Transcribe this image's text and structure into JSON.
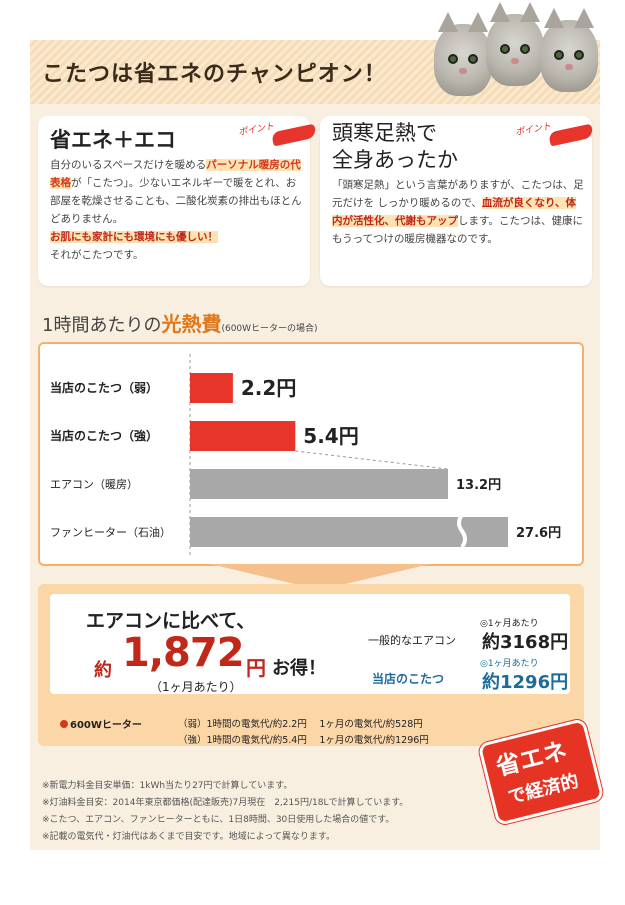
{
  "title": "こたつは省エネのチャンピオン！",
  "point_label": "ポイント",
  "box1": {
    "heading": "省エネ＋エコ",
    "t1": "自分のいるスペースだけを暖める",
    "t1_hl": "パーソナル暖房の代表格",
    "t2": "が「こたつ」。少ないエネルギーで暖をとれ、お部屋を乾燥させることも、二酸化炭素の排出もほとんどありません。",
    "hl_line": "お肌にも家計にも環境にも優しい！",
    "end": "それがこたつです。"
  },
  "box2": {
    "heading1": "頭寒足熱で",
    "heading2": "全身あったか",
    "t1": "「頭寒足熱」という言葉がありますが、こたつは、足元だけを しっかり暖めるので、",
    "hl": "血流が良くなり、体内が活性化、代謝もアップ",
    "t2": "します。こたつは、健康にもうってつけの暖房機器なのです。"
  },
  "cost_title": {
    "pre": "1時間あたりの",
    "big": "光熱費",
    "small": "(600Wヒーターの場合)"
  },
  "chart_data": {
    "type": "bar",
    "orientation": "horizontal",
    "categories": [
      "当店のこたつ（弱）",
      "当店のこたつ（強）",
      "エアコン（暖房）",
      "ファンヒーター（石油）"
    ],
    "values": [
      2.2,
      5.4,
      13.2,
      27.6
    ],
    "value_labels": [
      "2.2円",
      "5.4円",
      "13.2円",
      "27.6円"
    ],
    "unit": "円",
    "colors": [
      "#e8352c",
      "#e8352c",
      "#a8a8a8",
      "#a8a8a8"
    ],
    "axis_break_on": "ファンヒーター（石油）"
  },
  "result": {
    "line1": "エアコンに比べて、",
    "yaku": "約",
    "amount": "1,872",
    "yen": "円",
    "otoku": "お得！",
    "month": "（1ヶ月あたり）",
    "label_general": "一般的なエアコン",
    "label_ours": "当店のこたつ",
    "small": "◎1ヶ月あたり",
    "val_general": "約3168円",
    "val_ours": "約1296円"
  },
  "heater": {
    "label": "600Wヒーター",
    "row1": "（弱）1時間の電気代/約2.2円　 1ヶ月の電気代/約528円",
    "row2": "（強）1時間の電気代/約5.4円　 1ヶ月の電気代/約1296円"
  },
  "badge": {
    "line1": "省エネ",
    "line2": "で経済的"
  },
  "notes": [
    "※新電力料金目安単価：1kWh当たり27円で計算しています。",
    "※灯油料金目安：2014年東京都価格(配達販売)7月現在　2,215円/18Lで計算しています。",
    "※こたつ、エアコン、ファンヒーターともに、1日8時間、30日使用した場合の値です。",
    "※記載の電気代・灯油代はあくまで目安です。地域によって異なります。"
  ],
  "colors": {
    "accent_red": "#e8352c",
    "accent_orange": "#e0781a",
    "blue": "#1d6b9a",
    "background": "#f9efe1"
  }
}
